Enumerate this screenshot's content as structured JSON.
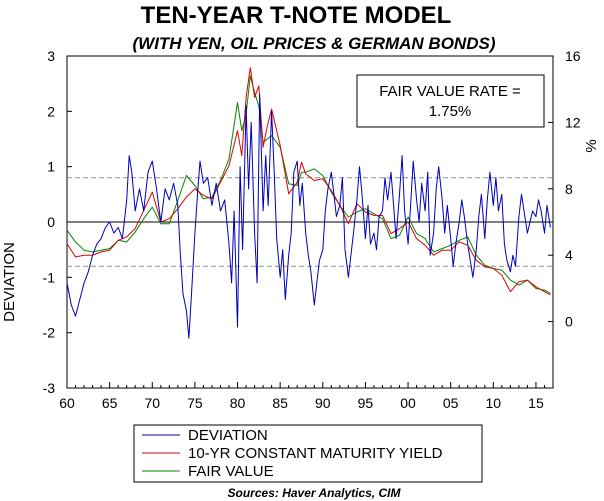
{
  "chart_data": {
    "type": "line",
    "title": "TEN-YEAR T-NOTE MODEL",
    "subtitle": "(WITH YEN, OIL PRICES & GERMAN BONDS)",
    "ylabel_left": "DEVIATION",
    "ylabel_right": "%",
    "source": "Sources:  Haver Analytics, CIM",
    "annotation": {
      "line1": "FAIR VALUE RATE =",
      "line2": "1.75%"
    },
    "xlim": [
      1960,
      2017
    ],
    "ylim_left": [
      -3,
      3
    ],
    "ylim_right": [
      -4,
      16
    ],
    "x_ticks": [
      {
        "value": 1960,
        "label": "60"
      },
      {
        "value": 1965,
        "label": "65"
      },
      {
        "value": 1970,
        "label": "70"
      },
      {
        "value": 1975,
        "label": "75"
      },
      {
        "value": 1980,
        "label": "80"
      },
      {
        "value": 1985,
        "label": "85"
      },
      {
        "value": 1990,
        "label": "90"
      },
      {
        "value": 1995,
        "label": "95"
      },
      {
        "value": 2000,
        "label": "00"
      },
      {
        "value": 2005,
        "label": "05"
      },
      {
        "value": 2010,
        "label": "10"
      },
      {
        "value": 2015,
        "label": "15"
      }
    ],
    "left_ticks": [
      {
        "value": 3,
        "label": "3"
      },
      {
        "value": 2,
        "label": "2"
      },
      {
        "value": 1,
        "label": "1"
      },
      {
        "value": 0,
        "label": "0"
      },
      {
        "value": -1,
        "label": "-1"
      },
      {
        "value": -2,
        "label": "-2"
      },
      {
        "value": -3,
        "label": "-3"
      }
    ],
    "right_ticks": [
      {
        "value": 16,
        "label": "16"
      },
      {
        "value": 12,
        "label": "12"
      },
      {
        "value": 8,
        "label": "8"
      },
      {
        "value": 4,
        "label": "4"
      },
      {
        "value": 0,
        "label": "0"
      }
    ],
    "reference_lines": [
      0.8,
      -0.8
    ],
    "legend_placement": "bottom",
    "series": [
      {
        "name": "DEVIATION",
        "axis": "left",
        "color": "#0000bb",
        "points": [
          [
            1960.0,
            -1.1
          ],
          [
            1960.5,
            -1.5
          ],
          [
            1961.0,
            -1.7
          ],
          [
            1961.5,
            -1.4
          ],
          [
            1962.0,
            -1.1
          ],
          [
            1962.5,
            -0.9
          ],
          [
            1963.0,
            -0.6
          ],
          [
            1963.5,
            -0.4
          ],
          [
            1964.0,
            -0.3
          ],
          [
            1964.5,
            -0.1
          ],
          [
            1965.0,
            0.0
          ],
          [
            1965.5,
            -0.2
          ],
          [
            1966.0,
            -0.1
          ],
          [
            1966.5,
            -0.3
          ],
          [
            1967.0,
            0.4
          ],
          [
            1967.3,
            1.2
          ],
          [
            1967.6,
            0.9
          ],
          [
            1968.0,
            0.2
          ],
          [
            1968.5,
            0.6
          ],
          [
            1969.0,
            0.2
          ],
          [
            1969.5,
            0.9
          ],
          [
            1970.0,
            1.1
          ],
          [
            1970.5,
            0.6
          ],
          [
            1971.0,
            0.0
          ],
          [
            1971.5,
            0.6
          ],
          [
            1972.0,
            0.4
          ],
          [
            1972.5,
            0.7
          ],
          [
            1973.0,
            0.3
          ],
          [
            1973.3,
            -0.6
          ],
          [
            1973.6,
            -1.3
          ],
          [
            1974.0,
            -1.6
          ],
          [
            1974.3,
            -2.1
          ],
          [
            1974.6,
            -1.3
          ],
          [
            1975.0,
            -0.2
          ],
          [
            1975.3,
            0.5
          ],
          [
            1975.6,
            1.1
          ],
          [
            1976.0,
            0.7
          ],
          [
            1976.5,
            0.8
          ],
          [
            1977.0,
            0.3
          ],
          [
            1977.5,
            0.7
          ],
          [
            1978.0,
            0.2
          ],
          [
            1978.5,
            0.4
          ],
          [
            1979.0,
            -0.4
          ],
          [
            1979.3,
            -1.1
          ],
          [
            1979.6,
            0.2
          ],
          [
            1980.0,
            -1.9
          ],
          [
            1980.3,
            1.0
          ],
          [
            1980.6,
            -0.5
          ],
          [
            1981.0,
            2.1
          ],
          [
            1981.3,
            0.6
          ],
          [
            1981.6,
            1.8
          ],
          [
            1982.0,
            -0.2
          ],
          [
            1982.3,
            -1.1
          ],
          [
            1982.6,
            2.3
          ],
          [
            1983.0,
            0.2
          ],
          [
            1983.3,
            1.2
          ],
          [
            1983.6,
            0.3
          ],
          [
            1984.0,
            2.0
          ],
          [
            1984.3,
            0.9
          ],
          [
            1984.6,
            -0.3
          ],
          [
            1985.0,
            -1.0
          ],
          [
            1985.3,
            -0.5
          ],
          [
            1985.6,
            -1.4
          ],
          [
            1986.0,
            -0.6
          ],
          [
            1986.3,
            -0.2
          ],
          [
            1986.6,
            0.9
          ],
          [
            1987.0,
            1.1
          ],
          [
            1987.3,
            0.3
          ],
          [
            1987.6,
            0.7
          ],
          [
            1988.0,
            -0.2
          ],
          [
            1988.3,
            -0.6
          ],
          [
            1988.6,
            -0.9
          ],
          [
            1989.0,
            -1.5
          ],
          [
            1989.3,
            -1.1
          ],
          [
            1989.6,
            -0.7
          ],
          [
            1990.0,
            -0.5
          ],
          [
            1990.3,
            0.2
          ],
          [
            1990.6,
            0.6
          ],
          [
            1991.0,
            0.9
          ],
          [
            1991.3,
            0.5
          ],
          [
            1991.6,
            0.1
          ],
          [
            1992.0,
            0.3
          ],
          [
            1992.3,
            0.8
          ],
          [
            1992.6,
            -0.5
          ],
          [
            1993.0,
            -1.0
          ],
          [
            1993.3,
            -0.6
          ],
          [
            1993.6,
            -0.2
          ],
          [
            1994.0,
            0.4
          ],
          [
            1994.3,
            1.0
          ],
          [
            1994.6,
            0.5
          ],
          [
            1995.0,
            -0.3
          ],
          [
            1995.3,
            0.3
          ],
          [
            1995.6,
            -0.4
          ],
          [
            1996.0,
            -0.2
          ],
          [
            1996.3,
            -0.5
          ],
          [
            1996.6,
            0.1
          ],
          [
            1997.0,
            0.2
          ],
          [
            1997.3,
            0.8
          ],
          [
            1997.6,
            0.4
          ],
          [
            1998.0,
            0.9
          ],
          [
            1998.3,
            0.3
          ],
          [
            1998.6,
            -0.3
          ],
          [
            1999.0,
            0.5
          ],
          [
            1999.3,
            1.2
          ],
          [
            1999.6,
            0.2
          ],
          [
            2000.0,
            -0.4
          ],
          [
            2000.3,
            0.3
          ],
          [
            2000.6,
            1.1
          ],
          [
            2001.0,
            0.4
          ],
          [
            2001.3,
            0.0
          ],
          [
            2001.6,
            0.7
          ],
          [
            2002.0,
            0.2
          ],
          [
            2002.3,
            0.9
          ],
          [
            2002.6,
            -0.6
          ],
          [
            2003.0,
            -0.2
          ],
          [
            2003.3,
            0.6
          ],
          [
            2003.6,
            1.0
          ],
          [
            2004.0,
            0.4
          ],
          [
            2004.3,
            -0.2
          ],
          [
            2004.6,
            0.3
          ],
          [
            2005.0,
            -0.3
          ],
          [
            2005.3,
            -0.8
          ],
          [
            2005.6,
            -0.4
          ],
          [
            2006.0,
            0.0
          ],
          [
            2006.3,
            0.4
          ],
          [
            2006.6,
            0.1
          ],
          [
            2007.0,
            -0.4
          ],
          [
            2007.3,
            -0.7
          ],
          [
            2007.6,
            -1.0
          ],
          [
            2008.0,
            -0.5
          ],
          [
            2008.3,
            0.1
          ],
          [
            2008.6,
            0.5
          ],
          [
            2009.0,
            -0.3
          ],
          [
            2009.3,
            0.4
          ],
          [
            2009.6,
            0.9
          ],
          [
            2010.0,
            0.3
          ],
          [
            2010.3,
            0.8
          ],
          [
            2010.6,
            0.2
          ],
          [
            2011.0,
            0.5
          ],
          [
            2011.3,
            -0.4
          ],
          [
            2011.6,
            -0.7
          ],
          [
            2012.0,
            -0.9
          ],
          [
            2012.3,
            -0.6
          ],
          [
            2012.6,
            -0.8
          ],
          [
            2013.0,
            0.1
          ],
          [
            2013.3,
            0.5
          ],
          [
            2013.6,
            0.2
          ],
          [
            2014.0,
            -0.2
          ],
          [
            2014.3,
            0.0
          ],
          [
            2014.6,
            0.2
          ],
          [
            2015.0,
            0.1
          ],
          [
            2015.3,
            0.4
          ],
          [
            2015.6,
            0.2
          ],
          [
            2016.0,
            -0.2
          ],
          [
            2016.3,
            0.3
          ],
          [
            2016.7,
            -0.1
          ]
        ]
      },
      {
        "name": "10-YR CONSTANT MATURITY YIELD",
        "axis": "right",
        "color": "#dd0000",
        "points": [
          [
            1960.0,
            4.7
          ],
          [
            1961.0,
            3.9
          ],
          [
            1962.0,
            4.0
          ],
          [
            1963.0,
            4.0
          ],
          [
            1964.0,
            4.2
          ],
          [
            1965.0,
            4.3
          ],
          [
            1966.0,
            4.9
          ],
          [
            1967.0,
            5.1
          ],
          [
            1968.0,
            5.6
          ],
          [
            1969.0,
            6.7
          ],
          [
            1970.0,
            7.8
          ],
          [
            1971.0,
            6.0
          ],
          [
            1972.0,
            6.2
          ],
          [
            1973.0,
            6.8
          ],
          [
            1974.0,
            7.5
          ],
          [
            1975.0,
            8.0
          ],
          [
            1976.0,
            7.6
          ],
          [
            1977.0,
            7.4
          ],
          [
            1978.0,
            8.4
          ],
          [
            1979.0,
            9.4
          ],
          [
            1980.0,
            11.5
          ],
          [
            1980.5,
            10.0
          ],
          [
            1981.0,
            13.5
          ],
          [
            1981.5,
            15.3
          ],
          [
            1982.0,
            13.5
          ],
          [
            1982.5,
            14.2
          ],
          [
            1983.0,
            10.5
          ],
          [
            1983.5,
            11.8
          ],
          [
            1984.0,
            12.8
          ],
          [
            1985.0,
            10.6
          ],
          [
            1986.0,
            7.7
          ],
          [
            1987.0,
            8.4
          ],
          [
            1987.5,
            9.6
          ],
          [
            1988.0,
            8.9
          ],
          [
            1989.0,
            8.5
          ],
          [
            1990.0,
            8.6
          ],
          [
            1991.0,
            7.9
          ],
          [
            1992.0,
            7.0
          ],
          [
            1993.0,
            5.9
          ],
          [
            1994.0,
            7.1
          ],
          [
            1995.0,
            6.6
          ],
          [
            1996.0,
            6.4
          ],
          [
            1997.0,
            6.4
          ],
          [
            1998.0,
            5.3
          ],
          [
            1999.0,
            5.6
          ],
          [
            2000.0,
            6.0
          ],
          [
            2001.0,
            5.0
          ],
          [
            2002.0,
            4.6
          ],
          [
            2003.0,
            4.0
          ],
          [
            2004.0,
            4.3
          ],
          [
            2005.0,
            4.3
          ],
          [
            2006.0,
            4.8
          ],
          [
            2007.0,
            4.6
          ],
          [
            2008.0,
            3.7
          ],
          [
            2009.0,
            3.3
          ],
          [
            2010.0,
            3.2
          ],
          [
            2011.0,
            2.8
          ],
          [
            2012.0,
            1.8
          ],
          [
            2013.0,
            2.4
          ],
          [
            2014.0,
            2.5
          ],
          [
            2015.0,
            2.1
          ],
          [
            2016.0,
            1.8
          ],
          [
            2016.7,
            1.6
          ]
        ]
      },
      {
        "name": "FAIR VALUE",
        "axis": "right",
        "color": "#008800",
        "points": [
          [
            1960.0,
            5.5
          ],
          [
            1961.0,
            4.8
          ],
          [
            1962.0,
            4.3
          ],
          [
            1963.0,
            4.2
          ],
          [
            1964.0,
            4.3
          ],
          [
            1965.0,
            4.4
          ],
          [
            1966.0,
            4.9
          ],
          [
            1967.0,
            4.8
          ],
          [
            1968.0,
            5.4
          ],
          [
            1969.0,
            6.2
          ],
          [
            1970.0,
            6.9
          ],
          [
            1971.0,
            5.9
          ],
          [
            1972.0,
            5.9
          ],
          [
            1973.0,
            7.3
          ],
          [
            1974.0,
            8.8
          ],
          [
            1975.0,
            8.2
          ],
          [
            1976.0,
            7.4
          ],
          [
            1977.0,
            7.5
          ],
          [
            1978.0,
            8.5
          ],
          [
            1979.0,
            9.8
          ],
          [
            1980.0,
            13.2
          ],
          [
            1980.5,
            11.5
          ],
          [
            1981.0,
            12.5
          ],
          [
            1981.5,
            14.8
          ],
          [
            1982.0,
            13.8
          ],
          [
            1982.5,
            13.0
          ],
          [
            1983.0,
            10.8
          ],
          [
            1983.5,
            11.0
          ],
          [
            1984.0,
            11.2
          ],
          [
            1985.0,
            10.5
          ],
          [
            1986.0,
            8.3
          ],
          [
            1987.0,
            8.2
          ],
          [
            1987.5,
            9.0
          ],
          [
            1988.0,
            9.0
          ],
          [
            1989.0,
            9.2
          ],
          [
            1990.0,
            8.8
          ],
          [
            1991.0,
            7.8
          ],
          [
            1992.0,
            7.0
          ],
          [
            1993.0,
            6.3
          ],
          [
            1994.0,
            6.6
          ],
          [
            1995.0,
            6.8
          ],
          [
            1996.0,
            6.5
          ],
          [
            1997.0,
            6.2
          ],
          [
            1998.0,
            5.0
          ],
          [
            1999.0,
            5.2
          ],
          [
            2000.0,
            6.3
          ],
          [
            2001.0,
            5.3
          ],
          [
            2002.0,
            5.0
          ],
          [
            2003.0,
            4.2
          ],
          [
            2004.0,
            4.4
          ],
          [
            2005.0,
            4.6
          ],
          [
            2006.0,
            4.9
          ],
          [
            2007.0,
            5.1
          ],
          [
            2008.0,
            4.0
          ],
          [
            2009.0,
            3.4
          ],
          [
            2010.0,
            3.2
          ],
          [
            2011.0,
            3.1
          ],
          [
            2012.0,
            2.5
          ],
          [
            2013.0,
            2.2
          ],
          [
            2014.0,
            2.5
          ],
          [
            2015.0,
            2.0
          ],
          [
            2016.0,
            1.9
          ],
          [
            2016.7,
            1.7
          ]
        ]
      }
    ]
  }
}
